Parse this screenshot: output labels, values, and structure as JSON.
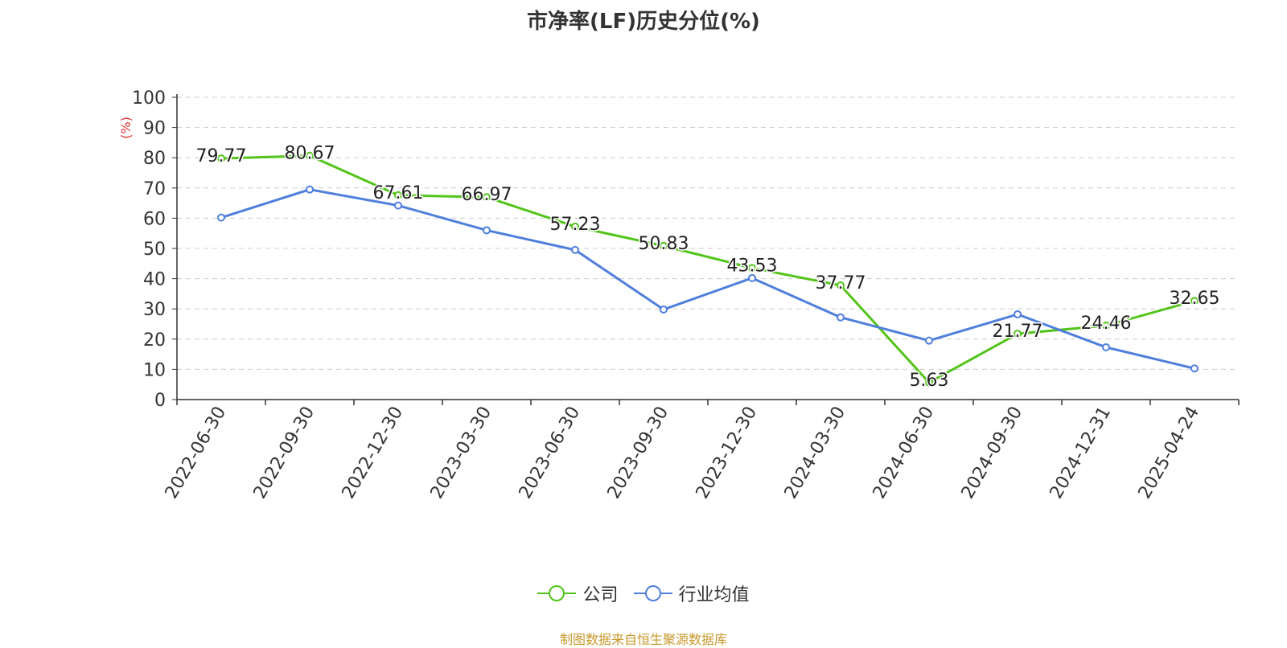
{
  "chart_data": {
    "type": "line",
    "title": "市净率(LF)历史分位(%)",
    "ylabel": "(%)",
    "xlabel": "",
    "ylim": [
      0,
      100
    ],
    "yticks": [
      0,
      10,
      20,
      30,
      40,
      50,
      60,
      70,
      80,
      90,
      100
    ],
    "categories": [
      "2022-06-30",
      "2022-09-30",
      "2022-12-30",
      "2023-03-30",
      "2023-06-30",
      "2023-09-30",
      "2023-12-30",
      "2024-03-30",
      "2024-06-30",
      "2024-09-30",
      "2024-12-31",
      "2025-04-24"
    ],
    "series": [
      {
        "name": "公司",
        "color": "#52c41a",
        "values": [
          79.77,
          80.67,
          67.61,
          66.97,
          57.23,
          50.83,
          43.53,
          37.77,
          5.63,
          21.77,
          24.46,
          32.65
        ],
        "labels": [
          "79.77",
          "80.67",
          "67.61",
          "66.97",
          "57.23",
          "50.83",
          "43.53",
          "37.77",
          "5.63",
          "21.77",
          "24.46",
          "32.65"
        ],
        "show_labels": true
      },
      {
        "name": "行业均值",
        "color": "#4f7fdd",
        "values": [
          60.2,
          69.5,
          64.2,
          56.0,
          49.5,
          29.8,
          40.2,
          27.2,
          19.5,
          28.2,
          17.3,
          10.3
        ],
        "show_labels": false
      }
    ],
    "grid": true,
    "grid_style": "dashed horizontal",
    "legend_position": "bottom-center"
  },
  "footer": {
    "source": "制图数据来自恒生聚源数据库"
  }
}
